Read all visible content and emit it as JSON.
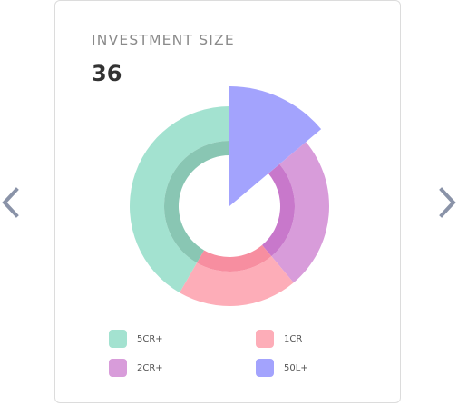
{
  "card": {
    "title": "INVESTMENT SIZE",
    "value": "36"
  },
  "nav": {
    "prev_icon": "chevron-left-icon",
    "next_icon": "chevron-right-icon",
    "color": "#8a93a8"
  },
  "chart_data": {
    "type": "pie",
    "variant": "donut",
    "highlighted": "50L+",
    "categories": [
      "50L+",
      "2CR+",
      "1CR",
      "5CR+"
    ],
    "values": [
      5,
      9,
      7,
      15
    ],
    "colors": [
      "#a3a3fd",
      "#d89cda",
      "#fdadb8",
      "#a3e2d0"
    ],
    "inner_colors": [
      "#8e8ef0",
      "#c878cb",
      "#f78ea0",
      "#89c6b3"
    ],
    "title": "INVESTMENT SIZE",
    "total": 36,
    "legend_placement": "bottom"
  },
  "legend": [
    {
      "label": "5CR+",
      "color": "#a3e2d0"
    },
    {
      "label": "1CR",
      "color": "#fdadb8"
    },
    {
      "label": "2CR+",
      "color": "#d89cda"
    },
    {
      "label": "50L+",
      "color": "#a3a3fd"
    }
  ]
}
